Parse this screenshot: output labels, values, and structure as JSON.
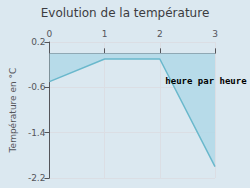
{
  "chart_data": {
    "type": "area",
    "title": "Evolution de la température",
    "ylabel": "Température en °C",
    "annotations": [
      {
        "text": "heure par heure",
        "x": 2.1,
        "y": -0.48
      }
    ],
    "x": [
      0,
      1,
      2,
      3
    ],
    "values": [
      -0.5,
      -0.1,
      -0.1,
      -2.0
    ],
    "color": "#6ab8cc",
    "xlim": [
      0,
      3
    ],
    "xticks": [
      0,
      1,
      2,
      3
    ],
    "ylim": [
      -2.2,
      0.2
    ],
    "yticks": [
      0.2,
      -0.6,
      -1.4,
      -2.2
    ],
    "grid": true
  }
}
